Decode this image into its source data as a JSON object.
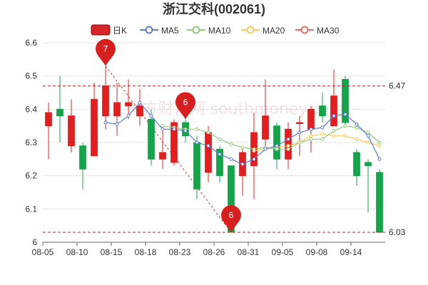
{
  "chart_data": {
    "type": "candlestick",
    "title": "浙江交科(002061)",
    "legend": [
      {
        "name": "日K",
        "color": "#d62728",
        "style": "box"
      },
      {
        "name": "MA5",
        "color": "#5b7bd5",
        "style": "line"
      },
      {
        "name": "MA10",
        "color": "#91cc75",
        "style": "line"
      },
      {
        "name": "MA20",
        "color": "#fac858",
        "style": "line"
      },
      {
        "name": "MA30",
        "color": "#ee6666",
        "style": "line"
      }
    ],
    "ylim": [
      6.0,
      6.6
    ],
    "yticks": [
      "6",
      "6.1",
      "6.2",
      "6.3",
      "6.4",
      "6.5",
      "6.6"
    ],
    "xlabels": [
      "08-05",
      "08-10",
      "08-15",
      "08-18",
      "08-23",
      "08-26",
      "08-31",
      "09-05",
      "09-08",
      "09-14"
    ],
    "xlabel_positions": [
      0,
      3,
      6,
      9,
      12,
      15,
      18,
      21,
      24,
      27
    ],
    "candles": [
      {
        "o": 6.35,
        "c": 6.39,
        "h": 6.42,
        "l": 6.25
      },
      {
        "o": 6.4,
        "c": 6.38,
        "h": 6.5,
        "l": 6.3
      },
      {
        "o": 6.29,
        "c": 6.38,
        "h": 6.43,
        "l": 6.27
      },
      {
        "o": 6.29,
        "c": 6.22,
        "h": 6.3,
        "l": 6.16
      },
      {
        "o": 6.26,
        "c": 6.43,
        "h": 6.48,
        "l": 6.26
      },
      {
        "o": 6.38,
        "c": 6.47,
        "h": 6.53,
        "l": 6.34
      },
      {
        "o": 6.38,
        "c": 6.42,
        "h": 6.48,
        "l": 6.32
      },
      {
        "o": 6.41,
        "c": 6.42,
        "h": 6.49,
        "l": 6.37
      },
      {
        "o": 6.38,
        "c": 6.41,
        "h": 6.46,
        "l": 6.35
      },
      {
        "o": 6.37,
        "c": 6.25,
        "h": 6.4,
        "l": 6.23
      },
      {
        "o": 6.25,
        "c": 6.27,
        "h": 6.35,
        "l": 6.22
      },
      {
        "o": 6.24,
        "c": 6.36,
        "h": 6.37,
        "l": 6.23
      },
      {
        "o": 6.36,
        "c": 6.32,
        "h": 6.37,
        "l": 6.3
      },
      {
        "o": 6.3,
        "c": 6.16,
        "h": 6.32,
        "l": 6.13
      },
      {
        "o": 6.21,
        "c": 6.33,
        "h": 6.35,
        "l": 6.18
      },
      {
        "o": 6.28,
        "c": 6.2,
        "h": 6.29,
        "l": 6.18
      },
      {
        "o": 6.23,
        "c": 6.03,
        "h": 6.23,
        "l": 6.03
      },
      {
        "o": 6.2,
        "c": 6.27,
        "h": 6.28,
        "l": 6.14
      },
      {
        "o": 6.23,
        "c": 6.33,
        "h": 6.39,
        "l": 6.13
      },
      {
        "o": 6.31,
        "c": 6.38,
        "h": 6.49,
        "l": 6.29
      },
      {
        "o": 6.35,
        "c": 6.25,
        "h": 6.36,
        "l": 6.22
      },
      {
        "o": 6.25,
        "c": 6.34,
        "h": 6.36,
        "l": 6.22
      },
      {
        "o": 6.36,
        "c": 6.36,
        "h": 6.38,
        "l": 6.26
      },
      {
        "o": 6.34,
        "c": 6.4,
        "h": 6.41,
        "l": 6.27
      },
      {
        "o": 6.41,
        "c": 6.38,
        "h": 6.45,
        "l": 6.36
      },
      {
        "o": 6.35,
        "c": 6.44,
        "h": 6.52,
        "l": 6.35
      },
      {
        "o": 6.49,
        "c": 6.36,
        "h": 6.5,
        "l": 6.35
      },
      {
        "o": 6.27,
        "c": 6.2,
        "h": 6.28,
        "l": 6.17
      },
      {
        "o": 6.24,
        "c": 6.23,
        "h": 6.25,
        "l": 6.09
      },
      {
        "o": 6.21,
        "c": 6.03,
        "h": 6.22,
        "l": 6.03
      }
    ],
    "ma5": [
      null,
      null,
      null,
      null,
      null,
      6.36,
      6.355,
      6.38,
      6.42,
      6.38,
      6.34,
      6.34,
      6.335,
      6.3,
      6.29,
      6.265,
      6.25,
      6.235,
      6.25,
      6.28,
      6.29,
      6.31,
      6.33,
      6.34,
      6.345,
      6.38,
      6.385,
      6.355,
      6.32,
      6.25
    ],
    "ma10": [
      null,
      null,
      null,
      null,
      null,
      null,
      null,
      null,
      null,
      null,
      6.35,
      6.345,
      6.34,
      6.34,
      6.33,
      6.31,
      6.295,
      6.285,
      6.28,
      6.285,
      6.28,
      6.28,
      6.3,
      6.31,
      6.31,
      6.335,
      6.35,
      6.345,
      6.33,
      6.3
    ],
    "ma20": [
      null,
      null,
      null,
      null,
      null,
      null,
      null,
      null,
      null,
      null,
      null,
      null,
      null,
      null,
      null,
      null,
      null,
      null,
      6.275,
      6.28,
      6.285,
      6.29,
      6.3,
      6.32,
      6.325,
      6.32,
      6.32,
      6.31,
      6.3,
      6.29
    ],
    "ma30": [],
    "ref_lines": [
      {
        "value": 6.47,
        "label": "6.47"
      },
      {
        "value": 6.03,
        "label": "6.03"
      }
    ],
    "markers": [
      {
        "index": 5,
        "value": 6.53,
        "label": "7"
      },
      {
        "index": 12,
        "value": 6.37,
        "label": "6"
      },
      {
        "index": 16,
        "value": 6.03,
        "label": "6"
      }
    ],
    "watermark": "南方财富网 southmoney.com",
    "grid": true
  }
}
